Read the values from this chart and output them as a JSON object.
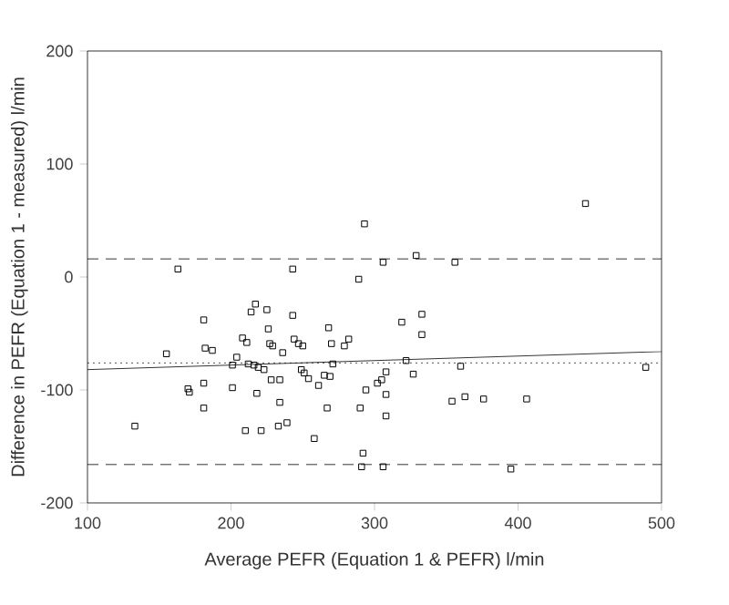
{
  "chart_data": {
    "type": "scatter",
    "xlabel": "Average PEFR (Equation 1 & PEFR) l/min",
    "ylabel": "Difference in PEFR (Equation 1 - measured) l/min",
    "xlim": [
      100,
      500
    ],
    "ylim": [
      -200,
      200
    ],
    "xticks": [
      100,
      200,
      300,
      400,
      500
    ],
    "yticks": [
      -200,
      -100,
      0,
      100,
      200
    ],
    "grid": false,
    "series": [
      {
        "marker": "square",
        "color": "#000000",
        "x": [
          447,
          293,
          329,
          306,
          356,
          163,
          243,
          289,
          181,
          217,
          214,
          225,
          243,
          226,
          208,
          211,
          227,
          229,
          244,
          247,
          250,
          236,
          268,
          270,
          282,
          279,
          319,
          333,
          333,
          155,
          182,
          187,
          204,
          201,
          212,
          216,
          219,
          223,
          249,
          251,
          254,
          271,
          269,
          265,
          261,
          322,
          327,
          308,
          305,
          302,
          294,
          308,
          308,
          360,
          363,
          376,
          406,
          354,
          489,
          170,
          171,
          181,
          181,
          201,
          218,
          228,
          234,
          234,
          133,
          210,
          221,
          233,
          239,
          258,
          267,
          290,
          292,
          291,
          306,
          395
        ],
        "values": [
          65,
          47,
          19,
          13,
          13,
          7,
          7,
          -2,
          -38,
          -24,
          -31,
          -29,
          -34,
          -46,
          -54,
          -58,
          -59,
          -61,
          -55,
          -59,
          -61,
          -67,
          -45,
          -59,
          -55,
          -61,
          -40,
          -33,
          -51,
          -68,
          -63,
          -65,
          -71,
          -78,
          -77,
          -78,
          -80,
          -82,
          -82,
          -85,
          -90,
          -77,
          -88,
          -87,
          -96,
          -74,
          -86,
          -84,
          -91,
          -94,
          -100,
          -104,
          -123,
          -79,
          -106,
          -108,
          -108,
          -110,
          -80,
          -99,
          -102,
          -94,
          -116,
          -98,
          -103,
          -91,
          -91,
          -111,
          -132,
          -136,
          -136,
          -132,
          -129,
          -143,
          -116,
          -116,
          -156,
          -168,
          -168,
          -170
        ]
      },
      {
        "type": "line",
        "marker": "none",
        "line_style": "solid",
        "color": "#000000",
        "x": [
          100,
          500
        ],
        "values": [
          -82,
          -66
        ]
      }
    ],
    "ref_lines": [
      {
        "axis": "y",
        "value": 16,
        "line_style": "dashed",
        "color": "#000000"
      },
      {
        "axis": "y",
        "value": -76,
        "line_style": "dotted",
        "color": "#000000"
      },
      {
        "axis": "y",
        "value": -166,
        "line_style": "dashed",
        "color": "#000000"
      }
    ]
  }
}
